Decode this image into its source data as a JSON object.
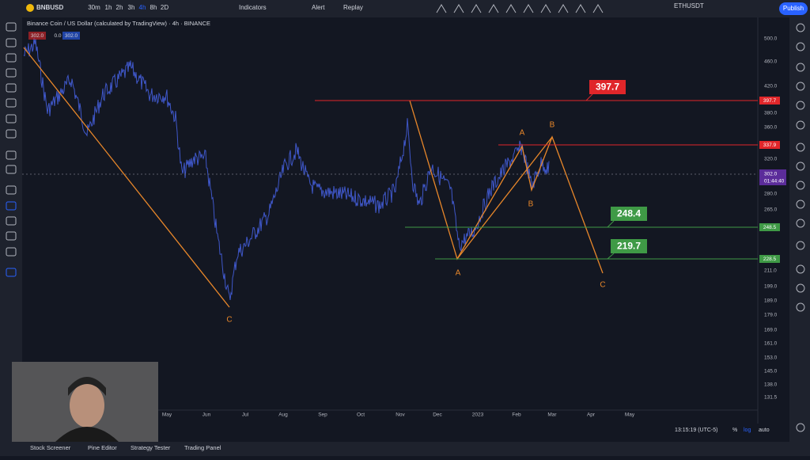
{
  "toolbar": {
    "symbol": "BNBUSD",
    "intervals": [
      "30m",
      "1h",
      "2h",
      "3h",
      "4h",
      "8h",
      "2D"
    ],
    "indicators": "Indicators",
    "alert": "Alert",
    "replay": "Replay",
    "ticker": "ETHUSDT",
    "publish": "Publish"
  },
  "legend": {
    "title": "Binance Coin / US Dollar (calculated by TradingView) · 4h · BINANCE",
    "prices": [
      "302.0",
      "0.0",
      "302.0"
    ]
  },
  "price_axis": {
    "ticks": [
      "500.0",
      "460.0",
      "420.0",
      "380.0",
      "360.0",
      "320.0",
      "280.0",
      "265.0",
      "211.0",
      "199.0",
      "189.0",
      "179.0",
      "169.0",
      "161.0",
      "153.0",
      "145.0",
      "138.0",
      "131.5"
    ],
    "current": "302.0",
    "countdown": "01:44:40",
    "line_labels": [
      "397.7",
      "337.9",
      "248.5",
      "228.5"
    ]
  },
  "time_axis": [
    "May",
    "Jun",
    "Jul",
    "Aug",
    "Sep",
    "Oct",
    "Nov",
    "Dec",
    "2023",
    "Feb",
    "Mar",
    "Apr",
    "May"
  ],
  "callouts": [
    "397.7",
    "248.4",
    "219.7"
  ],
  "wave_labels": [
    "C",
    "A",
    "A",
    "B",
    "B",
    "C"
  ],
  "status": {
    "time": "13:15:19 (UTC-5)",
    "percent": "%",
    "log": "log",
    "auto": "auto"
  },
  "bottom_tabs": [
    "Stock Screener",
    "Pine Editor",
    "Strategy Tester",
    "Trading Panel"
  ]
}
